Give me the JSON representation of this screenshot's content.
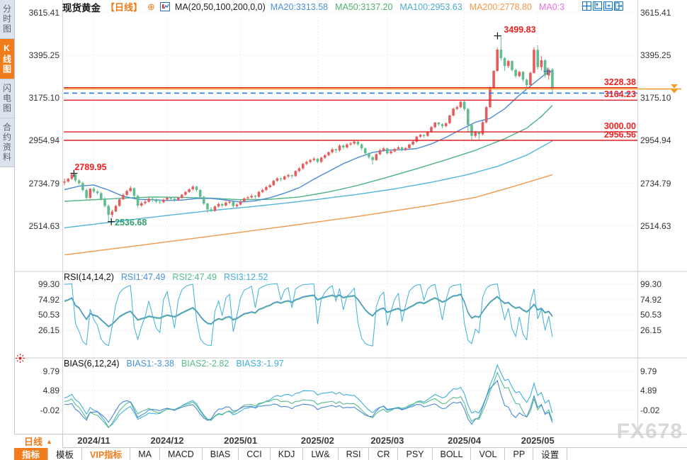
{
  "header": {
    "symbol": "现货黄金",
    "period_tag": "【日线】",
    "ma_formula": "MA(20,50,100,200,0,0)",
    "ma_values": [
      {
        "label": "MA20:3313.58",
        "color": "#4893d8"
      },
      {
        "label": "MA50:3137.20",
        "color": "#50b06e"
      },
      {
        "label": "MA100:2953.63",
        "color": "#4fadd0"
      },
      {
        "label": "MA200:2778.80",
        "color": "#f49a4a"
      },
      {
        "label": "MA0:3",
        "color": "#e86ee0"
      }
    ],
    "window_icons": [
      "crosshair-icon",
      "scale-left-icon",
      "scale-right-icon",
      "collapse-panel-icon"
    ]
  },
  "sidebar": {
    "tabs": [
      {
        "label": "分时图",
        "active": false
      },
      {
        "label": "K线图",
        "active": true
      },
      {
        "label": "闪电图",
        "active": false
      },
      {
        "label": "合约资料",
        "active": false
      }
    ]
  },
  "main_chart": {
    "y_axis": [
      "3615.41",
      "3395.25",
      "3175.10",
      "2954.94",
      "2734.79",
      "2514.63"
    ],
    "hlines": [
      {
        "label": "3228.38",
        "value": 3228.38
      },
      {
        "label": "3164.23",
        "value": 3164.23
      },
      {
        "label": "3000.00",
        "value": 3000.0
      },
      {
        "label": "2956.56",
        "value": 2956.56
      }
    ],
    "high_label": {
      "text": "3499.83",
      "value": 3499.83
    },
    "low_label": {
      "text": "2536.68",
      "value": 2536.68
    },
    "left_high_label": {
      "text": "2789.95",
      "value": 2789.95
    },
    "current_price_line": {
      "value": 3222.0,
      "color": "#f59a23"
    },
    "dashed_line": {
      "value": 3200.5,
      "color": "#2f7ce0"
    },
    "colors": {
      "up": "#e45c5c",
      "down": "#5fbd8f",
      "ma20": "#4a8ad4",
      "ma50": "#4db383",
      "ma100": "#52b5d8",
      "ma200": "#f09a4e",
      "hline": "#e02020",
      "label_red": "#f02222",
      "label_green": "#2fa06a"
    }
  },
  "rsi_panel": {
    "title": "RSI(14,14,2)",
    "values": [
      {
        "label": "RSI1:47.49",
        "color": "#4893d8"
      },
      {
        "label": "RSI2:47.49",
        "color": "#56bd8a"
      },
      {
        "label": "RSI3:12.52",
        "color": "#3fb0d8"
      }
    ],
    "y_axis": [
      "99.30",
      "74.92",
      "50.53",
      "26.15"
    ]
  },
  "bias_panel": {
    "title": "BIAS(6,12,24)",
    "values": [
      {
        "label": "BIAS1:-3.38",
        "color": "#4893d8"
      },
      {
        "label": "BIAS2:-2.82",
        "color": "#56bd8a"
      },
      {
        "label": "BIAS3:-1.97",
        "color": "#3fb0d8"
      }
    ],
    "y_axis": [
      "9.79",
      "4.89",
      "-0.02"
    ]
  },
  "x_axis": {
    "period_label": "日线",
    "period_arrow": "▲",
    "dates": [
      "2024/11",
      "2024/12",
      "2025/01",
      "2025/02",
      "2025/03",
      "2025/04",
      "2025/05"
    ]
  },
  "toolbar": {
    "items": [
      {
        "label": "指标",
        "style": "active"
      },
      {
        "label": "模板",
        "style": "normal"
      },
      {
        "label": "VIP指标",
        "style": "vip"
      },
      {
        "label": "MA",
        "style": "normal"
      },
      {
        "label": "MACD",
        "style": "normal"
      },
      {
        "label": "BIAS",
        "style": "normal"
      },
      {
        "label": "CCI",
        "style": "normal"
      },
      {
        "label": "KDJ",
        "style": "normal"
      },
      {
        "label": "LW&",
        "style": "normal"
      },
      {
        "label": "RSI",
        "style": "normal"
      },
      {
        "label": "CR",
        "style": "normal"
      },
      {
        "label": "PSY",
        "style": "normal"
      },
      {
        "label": "BOLL",
        "style": "normal"
      },
      {
        "label": "VOL",
        "style": "normal"
      },
      {
        "label": "PP",
        "style": "normal"
      },
      {
        "label": "设置",
        "style": "normal"
      }
    ]
  },
  "watermark": "FX678",
  "chart_data": {
    "type": "candlestick",
    "title": "现货黄金 日线",
    "ylim": [
      2514.63,
      3615.41
    ],
    "month_tick_indices": [
      8,
      28,
      48,
      69,
      88,
      109,
      129
    ],
    "pre_closes": [
      2618,
      2606,
      2622,
      2610,
      2626,
      2614,
      2630,
      2618,
      2634,
      2622,
      2638,
      2626,
      2642,
      2630,
      2646,
      2652,
      2640,
      2656,
      2662,
      2650,
      2666,
      2672,
      2660,
      2676,
      2682,
      2670,
      2686,
      2700,
      2710,
      2726
    ],
    "candles": [
      [
        2738,
        2760,
        2725,
        2744
      ],
      [
        2744,
        2763,
        2738,
        2758
      ],
      [
        2758,
        2789.95,
        2752,
        2780
      ],
      [
        2780,
        2784,
        2742,
        2749
      ],
      [
        2749,
        2756,
        2728,
        2736
      ],
      [
        2736,
        2744,
        2692,
        2700
      ],
      [
        2700,
        2708,
        2652,
        2660
      ],
      [
        2660,
        2710,
        2655,
        2707
      ],
      [
        2707,
        2715,
        2685,
        2692
      ],
      [
        2692,
        2700,
        2676,
        2684
      ],
      [
        2684,
        2690,
        2645,
        2653
      ],
      [
        2653,
        2662,
        2610,
        2618
      ],
      [
        2618,
        2625,
        2536.68,
        2572
      ],
      [
        2572,
        2598,
        2560,
        2589
      ],
      [
        2589,
        2624,
        2585,
        2618
      ],
      [
        2618,
        2658,
        2614,
        2652
      ],
      [
        2652,
        2682,
        2648,
        2675
      ],
      [
        2675,
        2702,
        2670,
        2695
      ],
      [
        2695,
        2721,
        2690,
        2710
      ],
      [
        2710,
        2712,
        2662,
        2670
      ],
      [
        2670,
        2676,
        2608,
        2620
      ],
      [
        2620,
        2640,
        2612,
        2632
      ],
      [
        2632,
        2648,
        2625,
        2640
      ],
      [
        2640,
        2662,
        2635,
        2655
      ],
      [
        2655,
        2660,
        2638,
        2648
      ],
      [
        2648,
        2655,
        2632,
        2640
      ],
      [
        2640,
        2649,
        2628,
        2637
      ],
      [
        2637,
        2656,
        2632,
        2650
      ],
      [
        2650,
        2666,
        2645,
        2660
      ],
      [
        2660,
        2665,
        2645,
        2655
      ],
      [
        2655,
        2660,
        2640,
        2648
      ],
      [
        2648,
        2665,
        2644,
        2660
      ],
      [
        2660,
        2680,
        2655,
        2676
      ],
      [
        2676,
        2695,
        2670,
        2690
      ],
      [
        2690,
        2710,
        2685,
        2704
      ],
      [
        2704,
        2725,
        2698,
        2718
      ],
      [
        2718,
        2722,
        2692,
        2700
      ],
      [
        2700,
        2705,
        2658,
        2665
      ],
      [
        2665,
        2670,
        2622,
        2630
      ],
      [
        2630,
        2634,
        2583,
        2600
      ],
      [
        2600,
        2612,
        2586,
        2592
      ],
      [
        2592,
        2620,
        2588,
        2615
      ],
      [
        2615,
        2635,
        2610,
        2628
      ],
      [
        2628,
        2632,
        2612,
        2620
      ],
      [
        2620,
        2642,
        2615,
        2635
      ],
      [
        2635,
        2648,
        2628,
        2640
      ],
      [
        2640,
        2644,
        2608,
        2617
      ],
      [
        2617,
        2632,
        2610,
        2625
      ],
      [
        2625,
        2648,
        2620,
        2640
      ],
      [
        2640,
        2662,
        2636,
        2657
      ],
      [
        2657,
        2670,
        2650,
        2662
      ],
      [
        2662,
        2678,
        2656,
        2670
      ],
      [
        2670,
        2674,
        2655,
        2665
      ],
      [
        2665,
        2696,
        2660,
        2690
      ],
      [
        2690,
        2706,
        2684,
        2700
      ],
      [
        2700,
        2722,
        2695,
        2715
      ],
      [
        2715,
        2732,
        2710,
        2725
      ],
      [
        2725,
        2753,
        2720,
        2748
      ],
      [
        2748,
        2766,
        2742,
        2760
      ],
      [
        2760,
        2765,
        2745,
        2755
      ],
      [
        2755,
        2775,
        2750,
        2770
      ],
      [
        2770,
        2784,
        2762,
        2777
      ],
      [
        2777,
        2780,
        2760,
        2772
      ],
      [
        2772,
        2802,
        2768,
        2798
      ],
      [
        2798,
        2818,
        2792,
        2812
      ],
      [
        2812,
        2840,
        2806,
        2835
      ],
      [
        2835,
        2852,
        2828,
        2845
      ],
      [
        2845,
        2862,
        2838,
        2855
      ],
      [
        2855,
        2870,
        2848,
        2862
      ],
      [
        2862,
        2866,
        2838,
        2845
      ],
      [
        2845,
        2872,
        2840,
        2867
      ],
      [
        2867,
        2886,
        2860,
        2880
      ],
      [
        2880,
        2900,
        2874,
        2895
      ],
      [
        2895,
        2918,
        2888,
        2910
      ],
      [
        2910,
        2915,
        2892,
        2905
      ],
      [
        2905,
        2936,
        2898,
        2930
      ],
      [
        2930,
        2934,
        2910,
        2920
      ],
      [
        2920,
        2942,
        2914,
        2935
      ],
      [
        2935,
        2948,
        2928,
        2940
      ],
      [
        2940,
        2956,
        2934,
        2950
      ],
      [
        2950,
        2954,
        2928,
        2936
      ],
      [
        2936,
        2940,
        2905,
        2915
      ],
      [
        2915,
        2920,
        2880,
        2890
      ],
      [
        2890,
        2894,
        2860,
        2870
      ],
      [
        2870,
        2875,
        2832,
        2855
      ],
      [
        2855,
        2890,
        2850,
        2885
      ],
      [
        2885,
        2912,
        2880,
        2905
      ],
      [
        2905,
        2922,
        2898,
        2915
      ],
      [
        2915,
        2918,
        2882,
        2890
      ],
      [
        2890,
        2906,
        2884,
        2900
      ],
      [
        2900,
        2918,
        2894,
        2912
      ],
      [
        2912,
        2928,
        2906,
        2920
      ],
      [
        2920,
        2924,
        2900,
        2908
      ],
      [
        2908,
        2922,
        2902,
        2917
      ],
      [
        2917,
        2940,
        2912,
        2935
      ],
      [
        2935,
        2956,
        2930,
        2950
      ],
      [
        2950,
        2980,
        2945,
        2975
      ],
      [
        2975,
        2990,
        2968,
        2985
      ],
      [
        2985,
        2988,
        2970,
        2980
      ],
      [
        2980,
        3004,
        2975,
        3000
      ],
      [
        3000,
        3030,
        2995,
        3025
      ],
      [
        3025,
        3052,
        3018,
        3048
      ],
      [
        3048,
        3052,
        3030,
        3040
      ],
      [
        3040,
        3045,
        3020,
        3030
      ],
      [
        3030,
        3050,
        3024,
        3045
      ],
      [
        3045,
        3090,
        3040,
        3085
      ],
      [
        3085,
        3126,
        3080,
        3120
      ],
      [
        3120,
        3136,
        3112,
        3128
      ],
      [
        3128,
        3160,
        3122,
        3156
      ],
      [
        3156,
        3162,
        3108,
        3118
      ],
      [
        3118,
        3125,
        2998,
        3036
      ],
      [
        3036,
        3040,
        2956.6,
        2980
      ],
      [
        2980,
        3006,
        2970,
        2998
      ],
      [
        2998,
        3002,
        2960,
        2988
      ],
      [
        2988,
        3056,
        2982,
        3050
      ],
      [
        3050,
        3134,
        3044,
        3128
      ],
      [
        3128,
        3236,
        3122,
        3228
      ],
      [
        3228,
        3320,
        3222,
        3315
      ],
      [
        3315,
        3435,
        3310,
        3425
      ],
      [
        3425,
        3499.83,
        3370,
        3381
      ],
      [
        3381,
        3386,
        3315,
        3340
      ],
      [
        3340,
        3372,
        3330,
        3366
      ],
      [
        3366,
        3370,
        3312,
        3320
      ],
      [
        3320,
        3326,
        3278,
        3288
      ],
      [
        3288,
        3316,
        3282,
        3310
      ],
      [
        3310,
        3314,
        3260,
        3270
      ],
      [
        3270,
        3276,
        3228,
        3242
      ],
      [
        3242,
        3312,
        3238,
        3305
      ],
      [
        3305,
        3438,
        3300,
        3424
      ],
      [
        3424,
        3448,
        3322,
        3335
      ],
      [
        3335,
        3392,
        3318,
        3370
      ],
      [
        3370,
        3376,
        3280,
        3292
      ],
      [
        3292,
        3332,
        3270,
        3322
      ],
      [
        3322,
        3330,
        3202,
        3222
      ]
    ],
    "ma_anchors": {
      "ma20": [
        [
          0,
          2702
        ],
        [
          4,
          2720
        ],
        [
          8,
          2726
        ],
        [
          12,
          2700
        ],
        [
          16,
          2668
        ],
        [
          20,
          2652
        ],
        [
          24,
          2650
        ],
        [
          28,
          2646
        ],
        [
          32,
          2648
        ],
        [
          36,
          2656
        ],
        [
          40,
          2657
        ],
        [
          44,
          2648
        ],
        [
          48,
          2638
        ],
        [
          52,
          2644
        ],
        [
          56,
          2660
        ],
        [
          60,
          2684
        ],
        [
          64,
          2712
        ],
        [
          68,
          2756
        ],
        [
          72,
          2796
        ],
        [
          76,
          2836
        ],
        [
          80,
          2868
        ],
        [
          84,
          2894
        ],
        [
          88,
          2906
        ],
        [
          92,
          2908
        ],
        [
          96,
          2914
        ],
        [
          100,
          2938
        ],
        [
          104,
          2972
        ],
        [
          108,
          3012
        ],
        [
          112,
          3050
        ],
        [
          116,
          3070
        ],
        [
          120,
          3120
        ],
        [
          124,
          3190
        ],
        [
          128,
          3252
        ],
        [
          131,
          3298
        ],
        [
          133,
          3313.58
        ]
      ],
      "ma50": [
        [
          0,
          2642
        ],
        [
          8,
          2650
        ],
        [
          16,
          2658
        ],
        [
          24,
          2664
        ],
        [
          32,
          2662
        ],
        [
          40,
          2658
        ],
        [
          48,
          2650
        ],
        [
          56,
          2652
        ],
        [
          64,
          2664
        ],
        [
          72,
          2690
        ],
        [
          80,
          2724
        ],
        [
          88,
          2766
        ],
        [
          96,
          2810
        ],
        [
          104,
          2856
        ],
        [
          112,
          2905
        ],
        [
          120,
          2965
        ],
        [
          126,
          3020
        ],
        [
          130,
          3080
        ],
        [
          133,
          3137.2
        ]
      ],
      "ma100": [
        [
          0,
          2505
        ],
        [
          10,
          2528
        ],
        [
          20,
          2551
        ],
        [
          30,
          2573
        ],
        [
          40,
          2594
        ],
        [
          50,
          2612
        ],
        [
          60,
          2632
        ],
        [
          70,
          2654
        ],
        [
          80,
          2678
        ],
        [
          90,
          2706
        ],
        [
          100,
          2740
        ],
        [
          110,
          2780
        ],
        [
          118,
          2822
        ],
        [
          126,
          2880
        ],
        [
          133,
          2953.63
        ]
      ],
      "ma200": [
        [
          0,
          2365
        ],
        [
          20,
          2413
        ],
        [
          40,
          2462
        ],
        [
          60,
          2512
        ],
        [
          80,
          2564
        ],
        [
          100,
          2622
        ],
        [
          112,
          2662
        ],
        [
          122,
          2716
        ],
        [
          133,
          2778.8
        ]
      ]
    }
  }
}
